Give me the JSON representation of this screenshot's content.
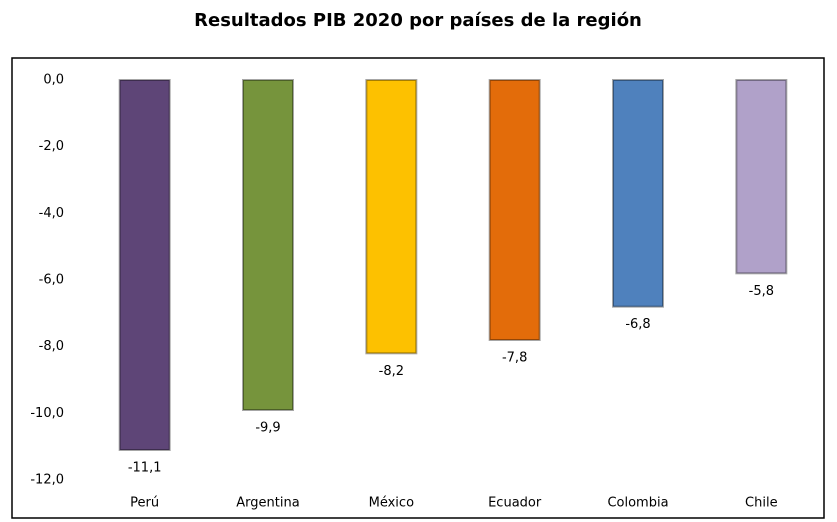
{
  "chart_data": {
    "type": "bar",
    "title": "Resultados PIB 2020 por países de la región",
    "categories": [
      "Perú",
      "Argentina",
      "México",
      "Ecuador",
      "Colombia",
      "Chile"
    ],
    "values": [
      -11.1,
      -9.9,
      -8.2,
      -7.8,
      -6.8,
      -5.8
    ],
    "value_labels": [
      "-11,1",
      "-9,9",
      "-8,2",
      "-7,8",
      "-6,8",
      "-5,8"
    ],
    "colors": [
      "#5e4577",
      "#76943c",
      "#fdc100",
      "#e36c0a",
      "#4f81bd",
      "#b0a1c9"
    ],
    "ylim": [
      -12,
      0
    ],
    "yticks": [
      {
        "value": 0,
        "label": "0,0"
      },
      {
        "value": -2,
        "label": "-2,0"
      },
      {
        "value": -4,
        "label": "-4,0"
      },
      {
        "value": -6,
        "label": "-6,0"
      },
      {
        "value": -8,
        "label": "-8,0"
      },
      {
        "value": -10,
        "label": "-10,0"
      },
      {
        "value": -12,
        "label": "-12,0"
      }
    ]
  }
}
